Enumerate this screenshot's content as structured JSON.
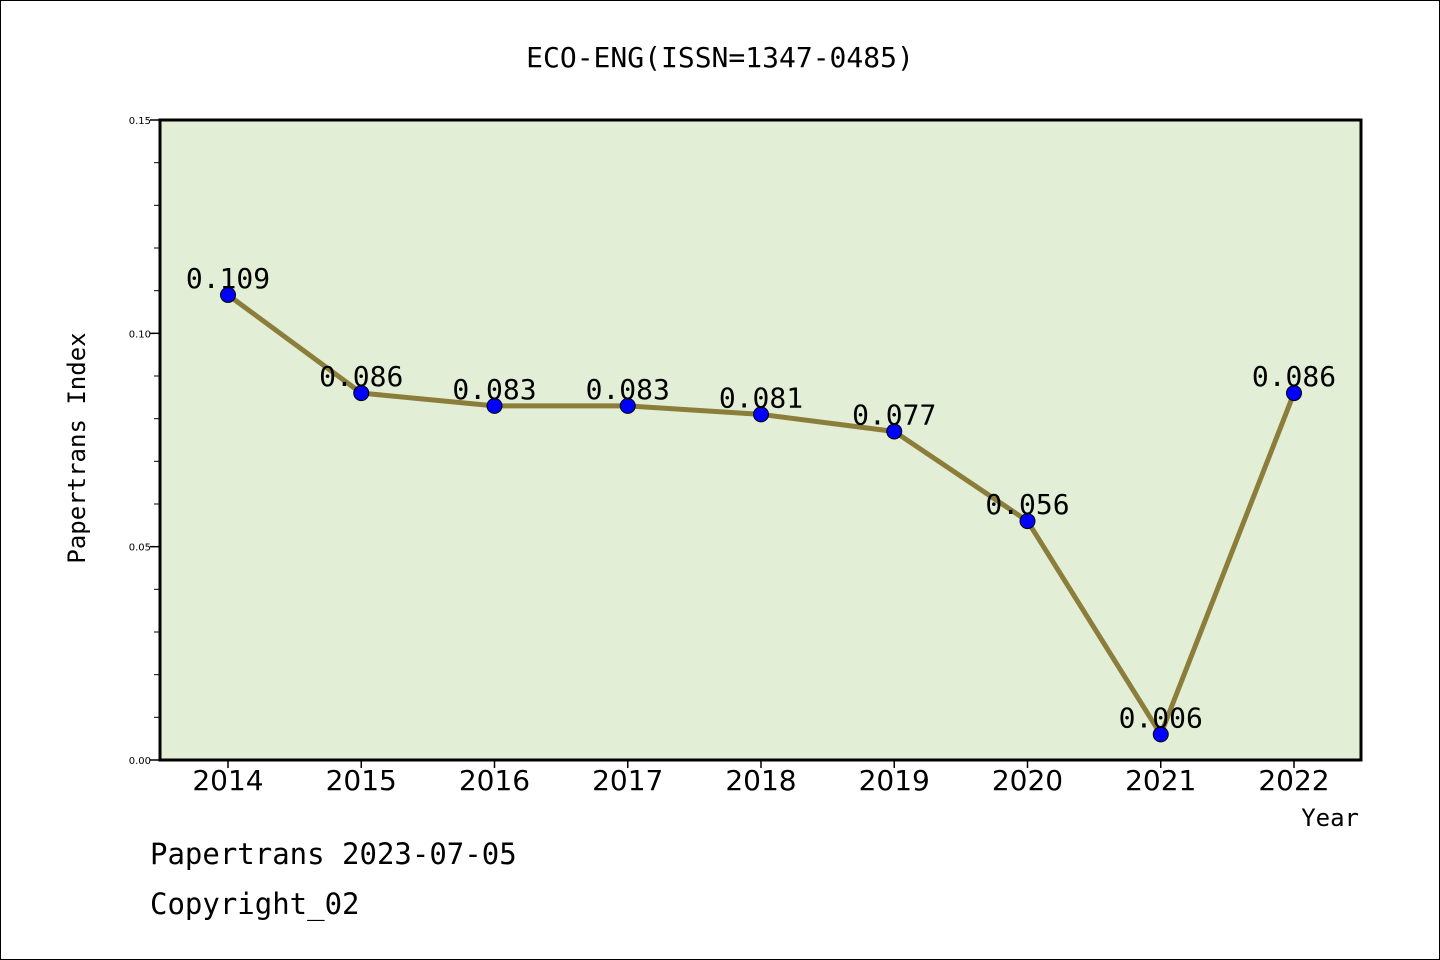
{
  "chart_data": {
    "type": "line",
    "title": "ECO-ENG(ISSN=1347-0485)",
    "xlabel": "Year",
    "ylabel": "Papertrans Index",
    "categories": [
      "2014",
      "2015",
      "2016",
      "2017",
      "2018",
      "2019",
      "2020",
      "2021",
      "2022"
    ],
    "values": [
      0.109,
      0.086,
      0.083,
      0.083,
      0.081,
      0.077,
      0.056,
      0.006,
      0.086
    ],
    "data_labels": [
      "0.109",
      "0.086",
      "0.083",
      "0.083",
      "0.081",
      "0.077",
      "0.056",
      "0.006",
      "0.086"
    ],
    "ylim": [
      0,
      0.15
    ],
    "y_ticks": [
      "0.00",
      "0.05",
      "0.10",
      "0.15"
    ],
    "y_tick_values": [
      0,
      0.05,
      0.1,
      0.15
    ],
    "grid": false,
    "colors": {
      "line": "#8b7d3a",
      "marker": "#0000ff",
      "plot_bg": "#e2efd6"
    }
  },
  "footer": {
    "line1": "Papertrans 2023-07-05",
    "line2": "Copyright_02"
  }
}
